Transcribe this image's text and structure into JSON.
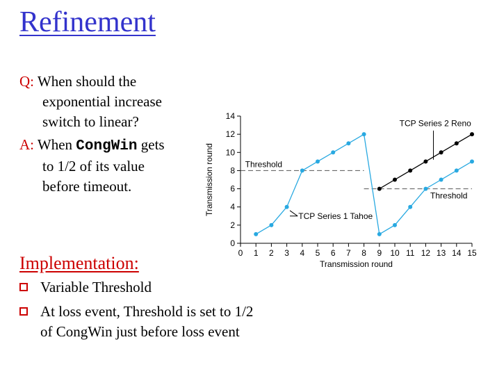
{
  "slide": {
    "title": "Refinement",
    "q_label": "Q:",
    "q_lines": [
      "When should the",
      "exponential increase",
      "switch to linear?"
    ],
    "a_label": "A:",
    "a_line1_pre": "When ",
    "a_line1_code": "CongWin",
    "a_line1_post": " gets",
    "a_lines": [
      "to 1/2 of its value",
      "before timeout."
    ],
    "impl_title": "Implementation:",
    "bullets": [
      "Variable Threshold",
      "At loss event, Threshold is set to 1/2 of CongWin just before loss event"
    ]
  },
  "colors": {
    "title": "#3333cc",
    "accent": "#cc0000",
    "tahoe": "#29a9e1",
    "reno": "#000000",
    "threshold": "#555555"
  },
  "chart_data": {
    "type": "line",
    "xlabel": "Transmission round",
    "ylabel": "Transmission round",
    "xlim": [
      0,
      15
    ],
    "ylim": [
      0,
      14
    ],
    "xticks": [
      0,
      1,
      2,
      3,
      4,
      5,
      6,
      7,
      8,
      9,
      10,
      11,
      12,
      13,
      14,
      15
    ],
    "yticks": [
      0,
      2,
      4,
      6,
      8,
      10,
      12,
      14
    ],
    "series": [
      {
        "name": "TCP Series 1 Tahoe",
        "x": [
          1,
          2,
          3,
          4,
          5,
          6,
          7,
          8,
          9,
          10,
          11,
          12,
          13,
          14,
          15
        ],
        "y": [
          1,
          2,
          4,
          8,
          9,
          10,
          11,
          12,
          1,
          2,
          4,
          6,
          7,
          8,
          9
        ]
      },
      {
        "name": "TCP Series 2 Reno",
        "x": [
          9,
          10,
          11,
          12,
          13,
          14,
          15
        ],
        "y": [
          6,
          7,
          8,
          9,
          10,
          11,
          12
        ]
      }
    ],
    "thresholds": [
      {
        "label": "Threshold",
        "y": 8,
        "x_range": [
          0,
          8
        ]
      },
      {
        "label": "Threshold",
        "y": 6,
        "x_range": [
          8,
          15
        ]
      }
    ]
  }
}
